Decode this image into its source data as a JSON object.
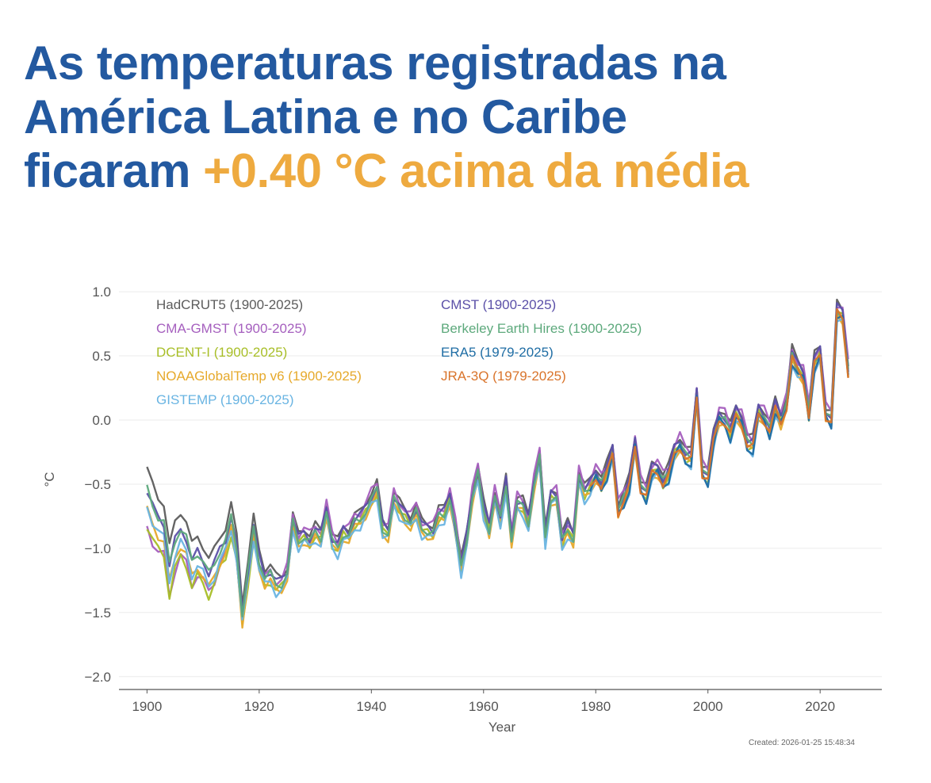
{
  "headline": {
    "line1": "As temperaturas registradas na",
    "line2": "América Latina e no Caribe",
    "line3_prefix": "ficaram ",
    "line3_highlight": "+0.40 °C acima da média"
  },
  "colors": {
    "headline": "#2359a0",
    "highlight": "#eeaa3f"
  },
  "footer": {
    "created": "Created: 2026-01-25 15:48:34"
  },
  "chart_data": {
    "type": "line",
    "xlabel": "Year",
    "ylabel": "°C",
    "xlim": [
      1895,
      2031
    ],
    "ylim": [
      -2.1,
      1.05
    ],
    "xticks": [
      1900,
      1920,
      1940,
      1960,
      1980,
      2000,
      2020
    ],
    "yticks": [
      1.0,
      0.5,
      0.0,
      -0.5,
      -1.0,
      -1.5,
      -2.0
    ],
    "ytick_labels": [
      "1.0",
      "0.5",
      "0.0",
      "−0.5",
      "−1.0",
      "−1.5",
      "−2.0"
    ],
    "grid": "horizontal",
    "legend_position": "top-left",
    "base": {
      "start_year": 1900,
      "end_year": 2025,
      "anchors": [
        [
          1900,
          -0.68
        ],
        [
          1901,
          -0.8
        ],
        [
          1902,
          -0.88
        ],
        [
          1903,
          -0.92
        ],
        [
          1904,
          -1.25
        ],
        [
          1905,
          -1.05
        ],
        [
          1906,
          -0.95
        ],
        [
          1907,
          -1.02
        ],
        [
          1908,
          -1.2
        ],
        [
          1909,
          -1.12
        ],
        [
          1910,
          -1.18
        ],
        [
          1911,
          -1.28
        ],
        [
          1912,
          -1.2
        ],
        [
          1913,
          -1.08
        ],
        [
          1914,
          -1.0
        ],
        [
          1915,
          -0.82
        ],
        [
          1916,
          -1.05
        ],
        [
          1917,
          -1.55
        ],
        [
          1918,
          -1.22
        ],
        [
          1919,
          -0.88
        ],
        [
          1920,
          -1.12
        ],
        [
          1921,
          -1.25
        ],
        [
          1922,
          -1.22
        ],
        [
          1923,
          -1.3
        ],
        [
          1924,
          -1.28
        ],
        [
          1925,
          -1.2
        ],
        [
          1926,
          -0.8
        ],
        [
          1927,
          -0.95
        ],
        [
          1928,
          -0.9
        ],
        [
          1929,
          -0.95
        ],
        [
          1930,
          -0.88
        ],
        [
          1931,
          -0.92
        ],
        [
          1932,
          -0.7
        ],
        [
          1933,
          -0.95
        ],
        [
          1934,
          -1.0
        ],
        [
          1935,
          -0.88
        ],
        [
          1936,
          -0.9
        ],
        [
          1937,
          -0.8
        ],
        [
          1938,
          -0.78
        ],
        [
          1939,
          -0.7
        ],
        [
          1940,
          -0.62
        ],
        [
          1941,
          -0.55
        ],
        [
          1942,
          -0.85
        ],
        [
          1943,
          -0.88
        ],
        [
          1944,
          -0.62
        ],
        [
          1945,
          -0.7
        ],
        [
          1946,
          -0.75
        ],
        [
          1947,
          -0.8
        ],
        [
          1948,
          -0.72
        ],
        [
          1949,
          -0.85
        ],
        [
          1950,
          -0.86
        ],
        [
          1951,
          -0.88
        ],
        [
          1952,
          -0.75
        ],
        [
          1953,
          -0.74
        ],
        [
          1954,
          -0.6
        ],
        [
          1955,
          -0.85
        ],
        [
          1956,
          -1.15
        ],
        [
          1957,
          -0.92
        ],
        [
          1958,
          -0.6
        ],
        [
          1959,
          -0.42
        ],
        [
          1960,
          -0.7
        ],
        [
          1961,
          -0.85
        ],
        [
          1962,
          -0.6
        ],
        [
          1963,
          -0.78
        ],
        [
          1964,
          -0.5
        ],
        [
          1965,
          -0.92
        ],
        [
          1966,
          -0.65
        ],
        [
          1967,
          -0.68
        ],
        [
          1968,
          -0.8
        ],
        [
          1969,
          -0.5
        ],
        [
          1970,
          -0.3
        ],
        [
          1971,
          -0.92
        ],
        [
          1972,
          -0.6
        ],
        [
          1973,
          -0.6
        ],
        [
          1974,
          -0.95
        ],
        [
          1975,
          -0.85
        ],
        [
          1976,
          -0.92
        ],
        [
          1977,
          -0.45
        ],
        [
          1978,
          -0.58
        ],
        [
          1979,
          -0.52
        ],
        [
          1980,
          -0.42
        ],
        [
          1981,
          -0.5
        ],
        [
          1982,
          -0.4
        ],
        [
          1983,
          -0.25
        ],
        [
          1984,
          -0.7
        ],
        [
          1985,
          -0.62
        ],
        [
          1986,
          -0.5
        ],
        [
          1987,
          -0.18
        ],
        [
          1988,
          -0.52
        ],
        [
          1989,
          -0.58
        ],
        [
          1990,
          -0.4
        ],
        [
          1991,
          -0.38
        ],
        [
          1992,
          -0.48
        ],
        [
          1993,
          -0.42
        ],
        [
          1994,
          -0.25
        ],
        [
          1995,
          -0.18
        ],
        [
          1996,
          -0.28
        ],
        [
          1997,
          -0.3
        ],
        [
          1998,
          0.2
        ],
        [
          1999,
          -0.4
        ],
        [
          2000,
          -0.45
        ],
        [
          2001,
          -0.15
        ],
        [
          2002,
          0.03
        ],
        [
          2003,
          0.0
        ],
        [
          2004,
          -0.1
        ],
        [
          2005,
          0.05
        ],
        [
          2006,
          0.0
        ],
        [
          2007,
          -0.18
        ],
        [
          2008,
          -0.2
        ],
        [
          2009,
          0.07
        ],
        [
          2010,
          0.02
        ],
        [
          2011,
          -0.08
        ],
        [
          2012,
          0.1
        ],
        [
          2013,
          0.0
        ],
        [
          2014,
          0.12
        ],
        [
          2015,
          0.5
        ],
        [
          2016,
          0.4
        ],
        [
          2017,
          0.35
        ],
        [
          2018,
          0.05
        ],
        [
          2019,
          0.45
        ],
        [
          2020,
          0.52
        ],
        [
          2021,
          0.05
        ],
        [
          2022,
          0.0
        ],
        [
          2023,
          0.85
        ],
        [
          2024,
          0.82
        ],
        [
          2025,
          0.38
        ]
      ]
    },
    "series": [
      {
        "name": "HadCRUT5 (1900-2025)",
        "color": "#5c5c5c",
        "start": 1900,
        "offset": 0.06,
        "early": {
          "dy": 0.24,
          "until": 1925
        }
      },
      {
        "name": "CMA-GMST (1900-2025)",
        "color": "#a55fbe",
        "start": 1900,
        "offset": 0.06,
        "early": {
          "dy": -0.22,
          "until": 1925
        }
      },
      {
        "name": "DCENT-I (1900-2025)",
        "color": "#a8be27",
        "start": 1900,
        "offset": -0.02,
        "early": {
          "dy": -0.12,
          "until": 1925
        }
      },
      {
        "name": "NOAAGlobalTemp v6 (1900-2025)",
        "color": "#e6a92b",
        "start": 1900,
        "offset": -0.04,
        "early": {
          "dy": 0.02,
          "until": 1925
        }
      },
      {
        "name": "GISTEMP (1900-2025)",
        "color": "#69b4e2",
        "start": 1900,
        "offset": -0.05,
        "early": {
          "dy": 0.06,
          "until": 1925
        }
      },
      {
        "name": "CMST (1900-2025)",
        "color": "#5b50a8",
        "start": 1900,
        "offset": 0.03,
        "early": {
          "dy": 0.1,
          "until": 1925
        }
      },
      {
        "name": "Berkeley Earth Hires (1900-2025)",
        "color": "#5da97c",
        "start": 1900,
        "offset": 0.0,
        "early": {
          "dy": 0.14,
          "until": 1925
        }
      },
      {
        "name": "ERA5 (1979-2025)",
        "color": "#1f6da4",
        "start": 1979,
        "offset": -0.04,
        "early": {
          "dy": 0,
          "until": 1900
        }
      },
      {
        "name": "JRA-3Q (1979-2025)",
        "color": "#d9742b",
        "start": 1979,
        "offset": -0.02,
        "early": {
          "dy": 0,
          "until": 1900
        }
      }
    ]
  }
}
